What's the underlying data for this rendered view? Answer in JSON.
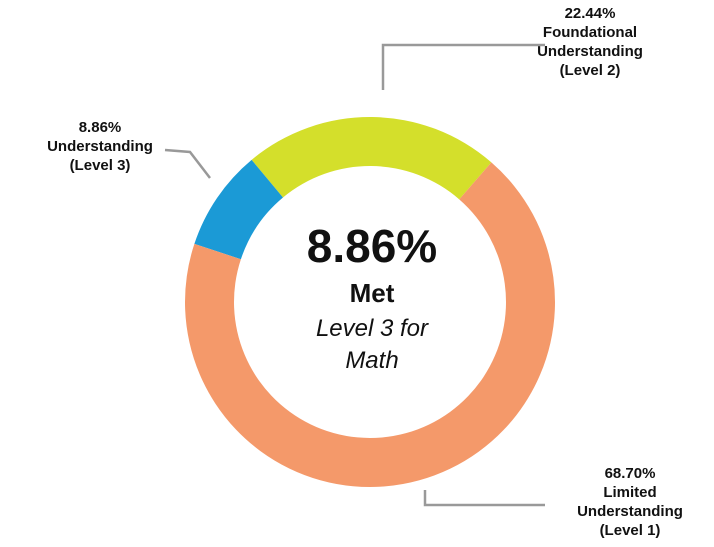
{
  "chart_data": {
    "type": "donut",
    "categories": [
      "Limited\nUnderstanding\n(Level 1)",
      "Understanding\n(Level 3)",
      "Foundational\nUnderstanding\n(Level 2)"
    ],
    "values": [
      68.7,
      8.86,
      22.44
    ],
    "value_labels": [
      "68.70%",
      "8.86%",
      "22.44%"
    ],
    "colors": [
      "#f4996a",
      "#1b9ad6",
      "#d4df2b"
    ],
    "center_value": "8.86%",
    "center_title": "Met",
    "center_subtitle": "Level 3 for\nMath"
  }
}
